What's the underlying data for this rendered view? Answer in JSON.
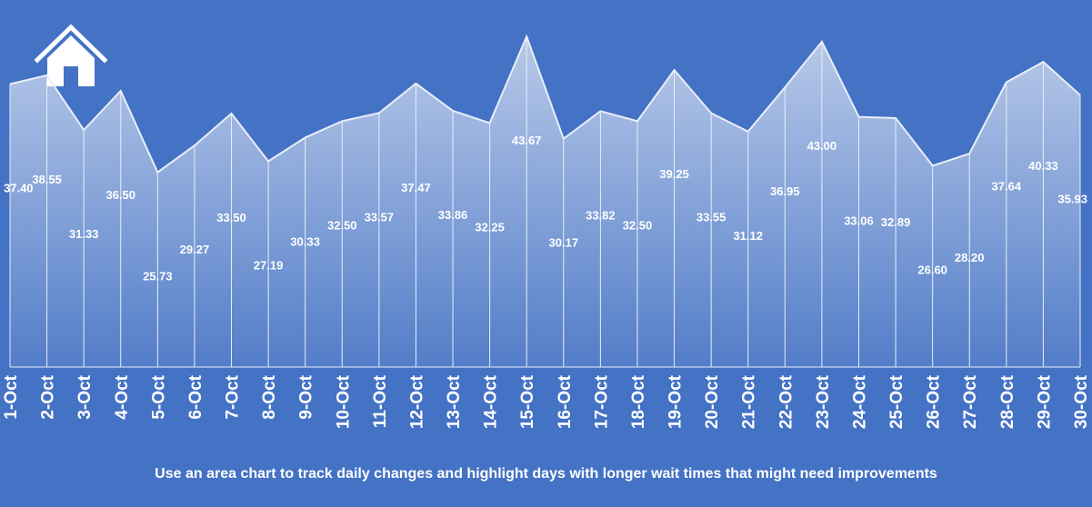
{
  "caption": "Use an area chart to track daily changes and highlight days with longer wait times that might need improvements",
  "colors": {
    "background": "#4472c4",
    "line": "#e9eef8",
    "text": "#ffffff"
  },
  "icons": {
    "home": "home-icon"
  },
  "chart_data": {
    "type": "area",
    "title": "",
    "xlabel": "",
    "ylabel": "",
    "ylim": [
      0,
      48.5
    ],
    "grid": false,
    "legend": "none",
    "categories": [
      "1-Oct",
      "2-Oct",
      "3-Oct",
      "4-Oct",
      "5-Oct",
      "6-Oct",
      "7-Oct",
      "8-Oct",
      "9-Oct",
      "10-Oct",
      "11-Oct",
      "12-Oct",
      "13-Oct",
      "14-Oct",
      "15-Oct",
      "16-Oct",
      "17-Oct",
      "18-Oct",
      "19-Oct",
      "20-Oct",
      "21-Oct",
      "22-Oct",
      "23-Oct",
      "24-Oct",
      "25-Oct",
      "26-Oct",
      "27-Oct",
      "28-Oct",
      "29-Oct",
      "30-Oct"
    ],
    "values": [
      37.4,
      38.55,
      31.33,
      36.5,
      25.73,
      29.27,
      33.5,
      27.19,
      30.33,
      32.5,
      33.57,
      37.47,
      33.86,
      32.25,
      43.67,
      30.17,
      33.82,
      32.5,
      39.25,
      33.55,
      31.12,
      36.95,
      43.0,
      33.06,
      32.89,
      26.6,
      28.2,
      37.64,
      40.33,
      35.93
    ],
    "labels": [
      "37.40",
      "38.55",
      "31.33",
      "36.50",
      "25.73",
      "29.27",
      "33.50",
      "27.19",
      "30.33",
      "32.50",
      "33.57",
      "37.47",
      "33.86",
      "32.25",
      "43.67",
      "30.17",
      "33.82",
      "32.50",
      "39.25",
      "33.55",
      "31.12",
      "36.95",
      "43.00",
      "33.06",
      "32.89",
      "26.60",
      "28.20",
      "37.64",
      "40.33",
      "35.93"
    ]
  }
}
